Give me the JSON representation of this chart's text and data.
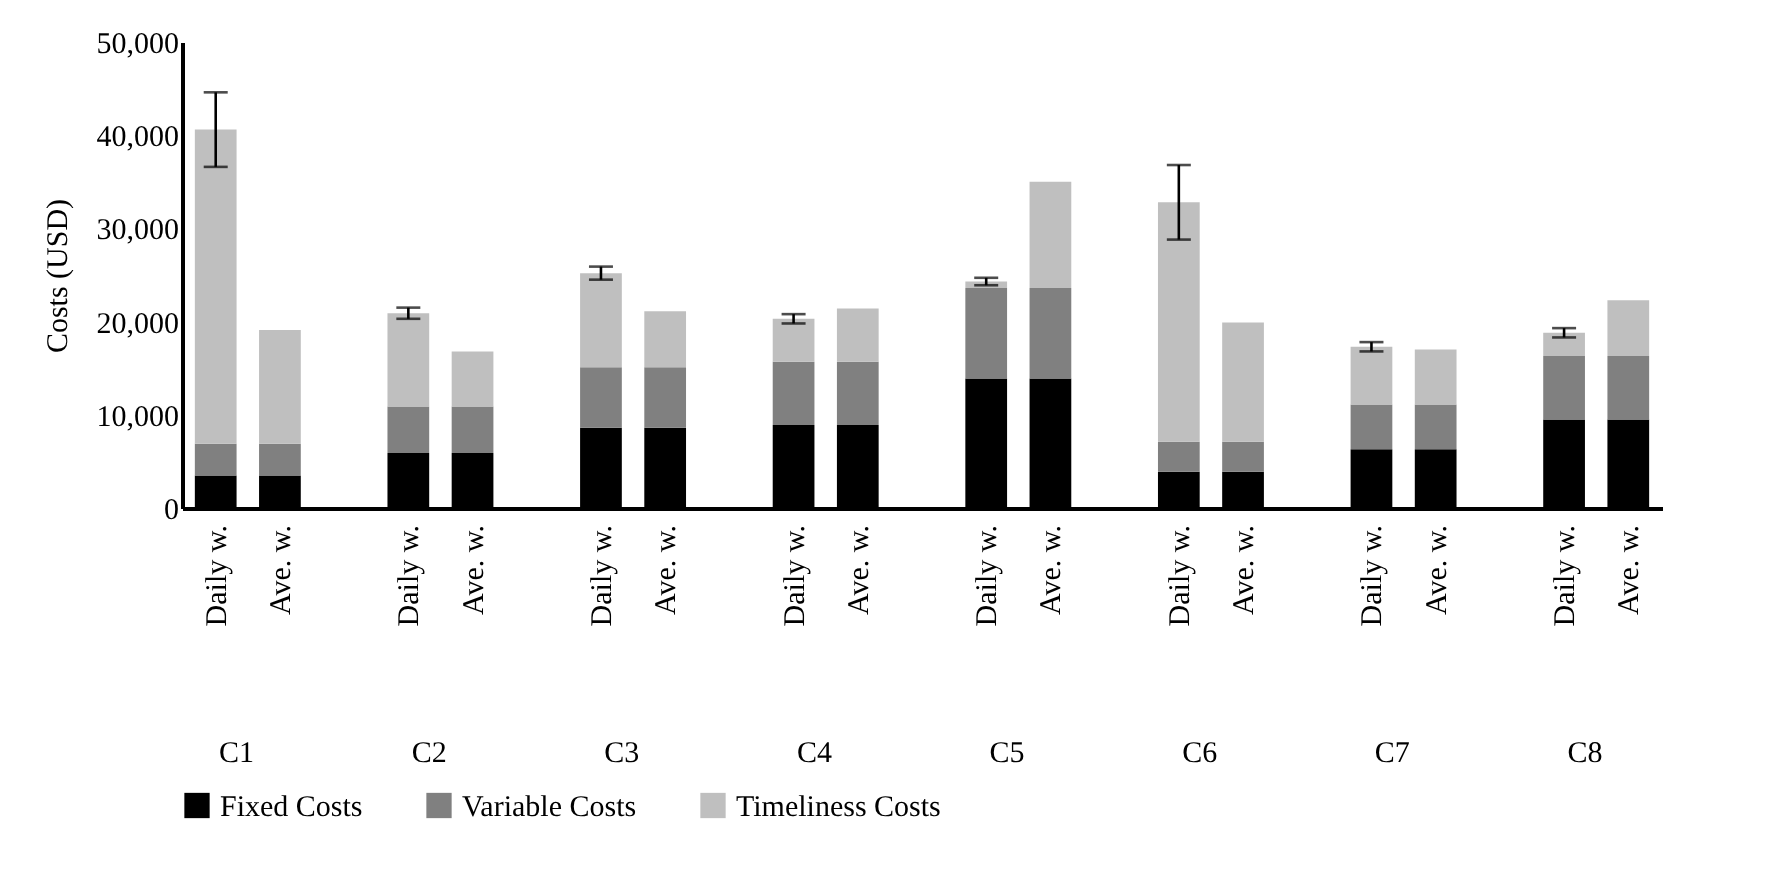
{
  "chart_data": {
    "type": "bar",
    "stacked": true,
    "ylabel": "Costs (USD)",
    "categories": [
      "Daily w.",
      "Ave. w.",
      null,
      "Daily w.",
      "Ave. w.",
      null,
      "Daily w.",
      "Ave. w.",
      null,
      "Daily w.",
      "Ave. w.",
      null,
      "Daily w.",
      "Ave. w.",
      null,
      "Daily w.",
      "Ave. w.",
      null,
      "Daily w.",
      "Ave. w.",
      null,
      "Daily w.",
      "Ave. w."
    ],
    "annotations": [
      "C1",
      "C2",
      "C3",
      "C4",
      "C5",
      "C6",
      "C7",
      "C8"
    ],
    "series": [
      {
        "name": "Fixed Costs",
        "color": "#000000",
        "values": [
          3500,
          3500,
          null,
          5900,
          5900,
          null,
          8600,
          8600,
          null,
          8900,
          8900,
          null,
          13900,
          13900,
          null,
          3900,
          3900,
          null,
          6300,
          6300,
          null,
          9500,
          9500
        ]
      },
      {
        "name": "Variable Costs",
        "color": "#808080",
        "values": [
          3400,
          3400,
          null,
          5000,
          5000,
          null,
          6500,
          6500,
          null,
          6800,
          6800,
          null,
          9700,
          9700,
          null,
          3200,
          3200,
          null,
          4800,
          4800,
          null,
          6800,
          6800
        ]
      },
      {
        "name": "Timeliness Costs",
        "color": "#bfbfbf",
        "values": [
          33700,
          12200,
          null,
          10000,
          5900,
          null,
          10100,
          6000,
          null,
          4600,
          5700,
          null,
          700,
          11400,
          null,
          25700,
          12800,
          null,
          6200,
          5900,
          null,
          2500,
          6000
        ],
        "errors": [
          4000,
          null,
          null,
          600,
          null,
          null,
          700,
          null,
          null,
          500,
          null,
          null,
          400,
          null,
          null,
          4000,
          null,
          null,
          500,
          null,
          null,
          500,
          null
        ]
      }
    ],
    "ylim": [
      0,
      50000
    ],
    "yticks": [
      0,
      {
        "value": 10000,
        "label": "10,000"
      },
      {
        "value": 20000,
        "label": "20,000"
      },
      {
        "value": 30000,
        "label": "30,000"
      },
      {
        "value": 40000,
        "label": "40,000"
      },
      {
        "value": 50000,
        "label": "50,000"
      }
    ],
    "grid": false,
    "legend": "bottom"
  }
}
